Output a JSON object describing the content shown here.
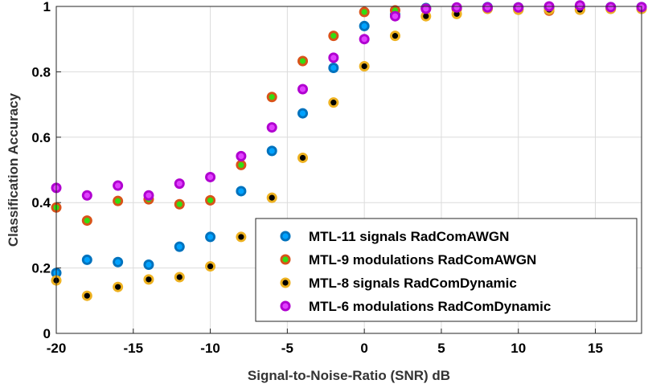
{
  "chart_data": {
    "type": "scatter",
    "title": "",
    "xlabel": "Signal-to-Noise-Ratio (SNR) dB",
    "ylabel": "Classification Accuracy",
    "xlim": [
      -20,
      18
    ],
    "ylim": [
      0,
      1
    ],
    "xticks": [
      -20,
      -15,
      -10,
      -5,
      0,
      5,
      10,
      15
    ],
    "xtick_labels": [
      "-20",
      "-15",
      "-10",
      "-5",
      "0",
      "5",
      "10",
      "15"
    ],
    "yticks": [
      0,
      0.2,
      0.4,
      0.6,
      0.8,
      1
    ],
    "ytick_labels": [
      "0",
      "0.2",
      "0.4",
      "0.6",
      "0.8",
      "1"
    ],
    "grid": true,
    "legend_position": "bottom-right",
    "series": [
      {
        "name": "MTL-11 signals RadComAWGN",
        "outer_color": "#0072BD",
        "inner_color": "#00a2ff",
        "x": [
          -20,
          -18,
          -16,
          -14,
          -12,
          -10,
          -8,
          -6,
          -4,
          -2,
          0,
          2,
          4,
          6,
          8,
          10,
          12,
          14,
          16,
          18
        ],
        "y": [
          0.185,
          0.225,
          0.218,
          0.21,
          0.265,
          0.295,
          0.435,
          0.558,
          0.673,
          0.812,
          0.94,
          0.975,
          0.995,
          0.995,
          0.998,
          0.997,
          0.995,
          0.998,
          0.998,
          0.998
        ]
      },
      {
        "name": "MTL-9 modulations RadComAWGN",
        "outer_color": "#D95319",
        "inner_color": "#33dd11",
        "x": [
          -20,
          -18,
          -16,
          -14,
          -12,
          -10,
          -8,
          -6,
          -4,
          -2,
          0,
          2,
          4,
          6,
          8,
          10,
          12,
          14,
          16,
          18
        ],
        "y": [
          0.385,
          0.345,
          0.405,
          0.41,
          0.395,
          0.407,
          0.515,
          0.723,
          0.833,
          0.91,
          0.983,
          0.988,
          0.993,
          0.993,
          0.993,
          0.99,
          0.987,
          0.99,
          0.993,
          0.993
        ]
      },
      {
        "name": "MTL-8 signals RadComDynamic",
        "outer_color": "#EDB120",
        "inner_color": "#000000",
        "x": [
          -20,
          -18,
          -16,
          -14,
          -12,
          -10,
          -8,
          -6,
          -4,
          -2,
          0,
          2,
          4,
          6,
          8,
          10,
          12,
          14,
          16,
          18
        ],
        "y": [
          0.162,
          0.115,
          0.142,
          0.165,
          0.172,
          0.205,
          0.295,
          0.415,
          0.537,
          0.706,
          0.817,
          0.91,
          0.97,
          0.977,
          0.993,
          0.99,
          0.99,
          0.99,
          0.993,
          0.993
        ]
      },
      {
        "name": "MTL-6 modulations RadComDynamic",
        "outer_color": "#B000D0",
        "inner_color": "#e040ff",
        "x": [
          -20,
          -18,
          -16,
          -14,
          -12,
          -10,
          -8,
          -6,
          -4,
          -2,
          0,
          2,
          4,
          6,
          8,
          10,
          12,
          14,
          16,
          18
        ],
        "y": [
          0.445,
          0.422,
          0.452,
          0.422,
          0.458,
          0.478,
          0.542,
          0.63,
          0.747,
          0.843,
          0.9,
          0.97,
          0.993,
          0.997,
          0.997,
          0.997,
          1.0,
          1.003,
          0.998,
          0.998
        ]
      }
    ]
  }
}
